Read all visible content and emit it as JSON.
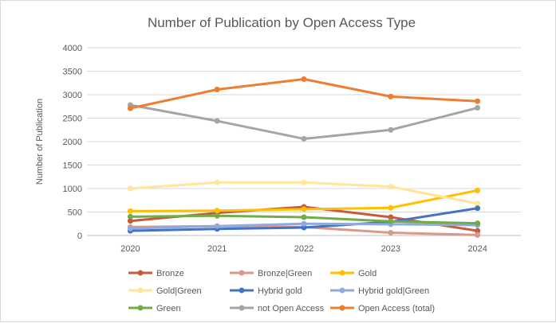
{
  "chart_data": {
    "type": "line",
    "title": "Number of Publication by Open Access Type",
    "xlabel": "",
    "ylabel": "Number of Publication",
    "x": [
      "2020",
      "2021",
      "2022",
      "2023",
      "2024"
    ],
    "ylim": [
      0,
      4000
    ],
    "yticks": [
      0,
      500,
      1000,
      1500,
      2000,
      2500,
      3000,
      3500,
      4000
    ],
    "grid": true,
    "legend_position": "bottom",
    "series": [
      {
        "name": "Bronze",
        "color": "#c55a3c",
        "values": [
          310,
          480,
          610,
          390,
          100
        ]
      },
      {
        "name": "Bronze|Green",
        "color": "#d9998a",
        "values": [
          180,
          200,
          180,
          60,
          10
        ]
      },
      {
        "name": "Gold",
        "color": "#ffc000",
        "values": [
          520,
          530,
          560,
          590,
          960
        ]
      },
      {
        "name": "Gold|Green",
        "color": "#ffe699",
        "values": [
          1000,
          1130,
          1130,
          1040,
          680
        ]
      },
      {
        "name": "Hybrid gold",
        "color": "#4472c4",
        "values": [
          100,
          140,
          170,
          290,
          580
        ]
      },
      {
        "name": "Hybrid gold|Green",
        "color": "#8faadc",
        "values": [
          150,
          200,
          250,
          240,
          220
        ]
      },
      {
        "name": "Green",
        "color": "#70ad47",
        "values": [
          400,
          420,
          390,
          300,
          260
        ]
      },
      {
        "name": "not Open Access",
        "color": "#a5a5a5",
        "values": [
          2780,
          2440,
          2060,
          2250,
          2720
        ]
      },
      {
        "name": "Open Access (total)",
        "color": "#ed7d31",
        "values": [
          2710,
          3110,
          3330,
          2960,
          2860
        ]
      }
    ]
  }
}
